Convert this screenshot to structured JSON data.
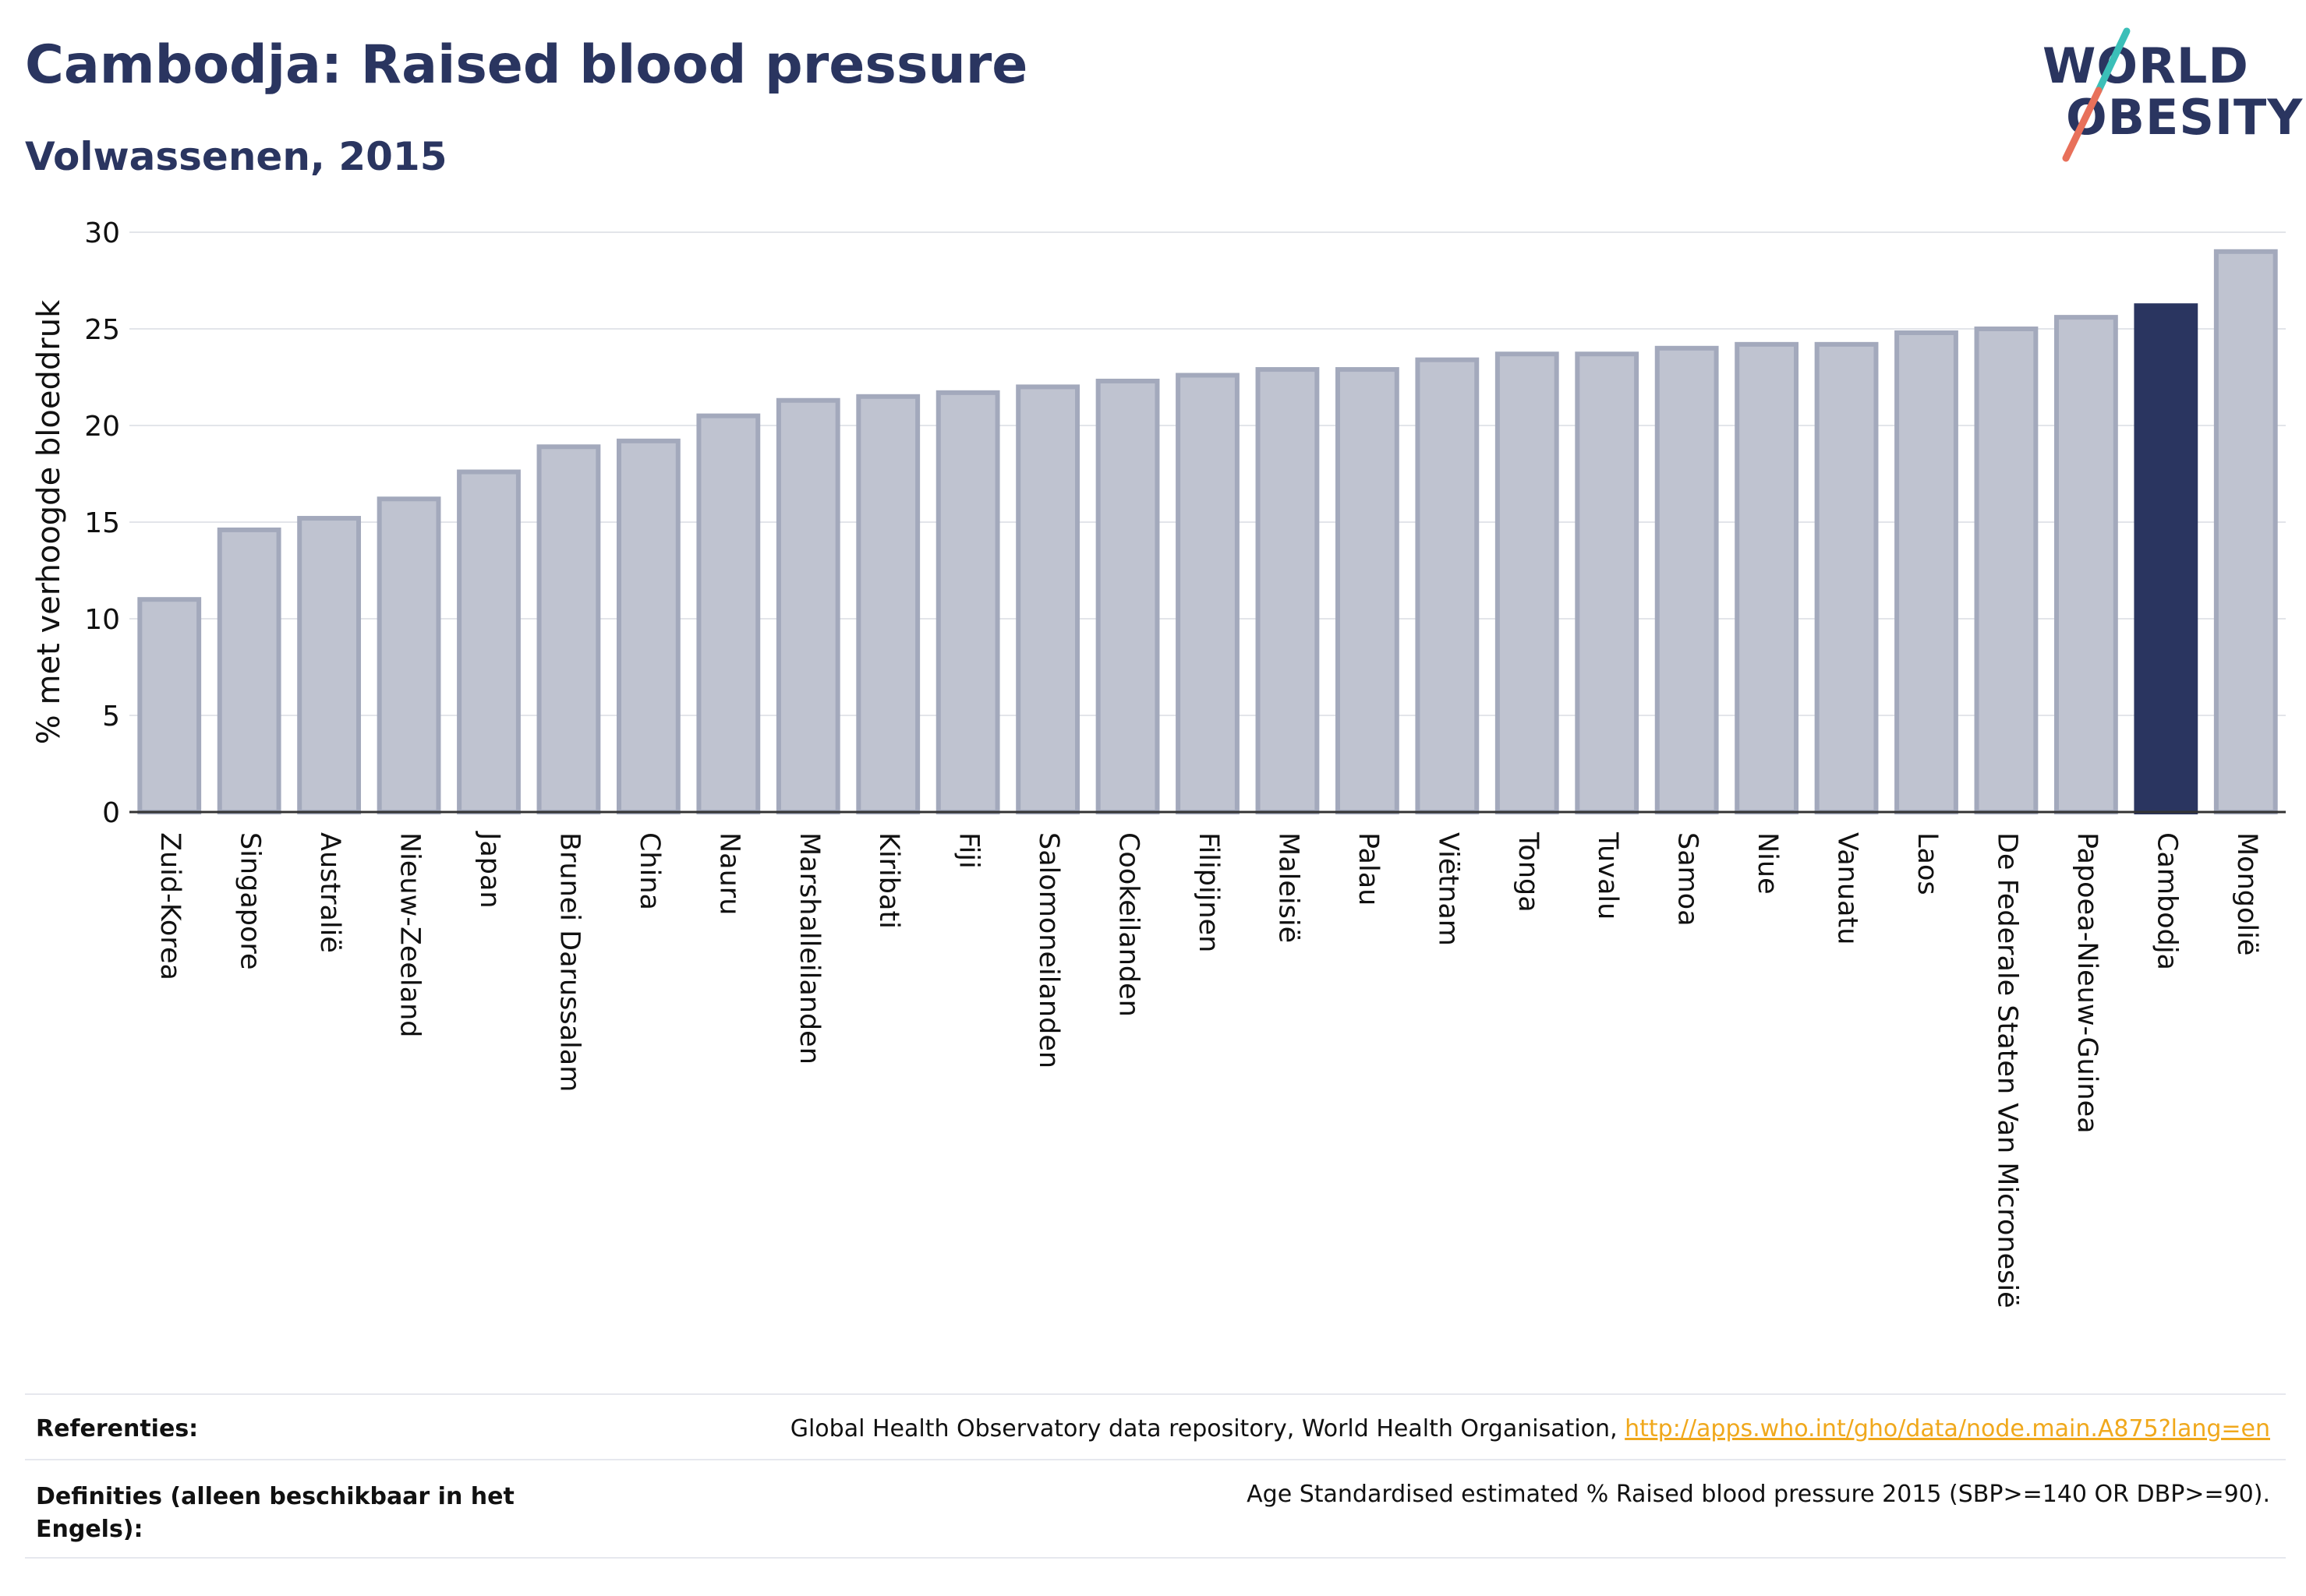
{
  "header": {
    "title": "Cambodja: Raised blood pressure",
    "subtitle": "Volwassenen, 2015"
  },
  "logo": {
    "line1": "WORLD",
    "line2": "OBESITY",
    "colors": {
      "text": "#2a3560",
      "slash_top": "#3bbfb8",
      "slash_bottom": "#e8705a"
    }
  },
  "chart_data": {
    "type": "bar",
    "ylabel": "% met verhoogde bloeddruk",
    "ylim": [
      0,
      30
    ],
    "yticks": [
      0,
      5,
      10,
      15,
      20,
      25,
      30
    ],
    "grid": true,
    "highlight": "Cambodja",
    "colors": {
      "bar": "#bfc3d0",
      "bar_edge": "#a3a9bc",
      "highlight": "#2a3560"
    },
    "categories": [
      "Zuid-Korea",
      "Singapore",
      "Australië",
      "Nieuw-Zeeland",
      "Japan",
      "Brunei Darussalam",
      "China",
      "Nauru",
      "Marshalleilanden",
      "Kiribati",
      "Fiji",
      "Salomoneilanden",
      "Cookeilanden",
      "Filipijnen",
      "Maleisië",
      "Palau",
      "Viëtnam",
      "Tonga",
      "Tuvalu",
      "Samoa",
      "Niue",
      "Vanuatu",
      "Laos",
      "De Federale Staten Van Micronesië",
      "Papoea-Nieuw-Guinea",
      "Cambodja",
      "Mongolië"
    ],
    "values": [
      11.0,
      14.6,
      15.2,
      16.2,
      17.6,
      18.9,
      19.2,
      20.5,
      21.3,
      21.5,
      21.7,
      22.0,
      22.3,
      22.6,
      22.9,
      22.9,
      23.4,
      23.7,
      23.7,
      24.0,
      24.2,
      24.2,
      24.8,
      25.0,
      25.6,
      26.2,
      29.0
    ]
  },
  "footer": {
    "references_label": "Referenties:",
    "references_text": "Global Health Observatory data repository, World Health Organisation, ",
    "references_link": "http://apps.who.int/gho/data/node.main.A875?lang=en",
    "definitions_label_line1": "Definities (alleen beschikbaar in het",
    "definitions_label_line2": "Engels):",
    "definitions_text": "Age Standardised estimated % Raised blood pressure 2015 (SBP>=140 OR DBP>=90)."
  }
}
